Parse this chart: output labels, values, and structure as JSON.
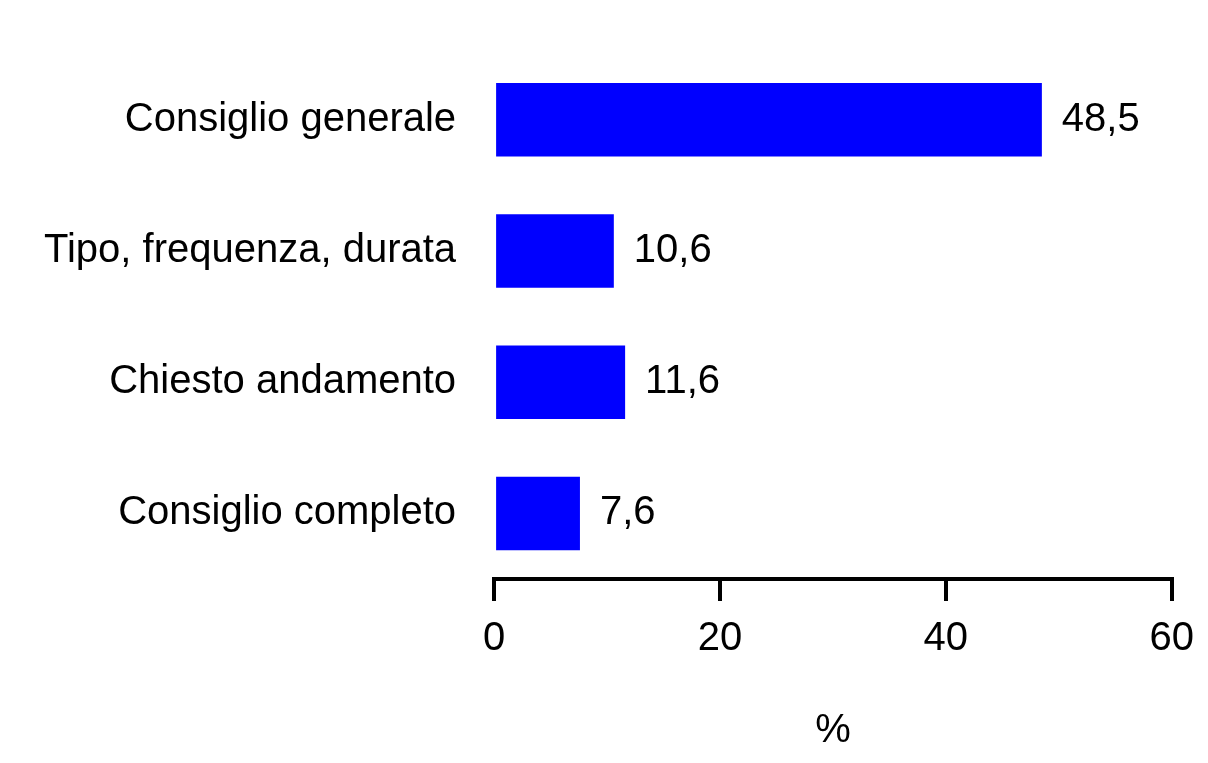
{
  "chart_data": {
    "type": "bar",
    "orientation": "horizontal",
    "xlabel": "%",
    "categories": [
      "Consiglio generale",
      "Tipo, frequenza, durata",
      "Chiesto andamento",
      "Consiglio completo"
    ],
    "values": [
      48.5,
      10.6,
      11.6,
      7.6
    ],
    "value_labels": [
      "48,5",
      "10,6",
      "11,6",
      "7,6"
    ],
    "color": "#0000ff",
    "xlim": [
      0,
      60
    ],
    "xticks": [
      0,
      20,
      40,
      60
    ],
    "grid": false,
    "legend": false
  }
}
